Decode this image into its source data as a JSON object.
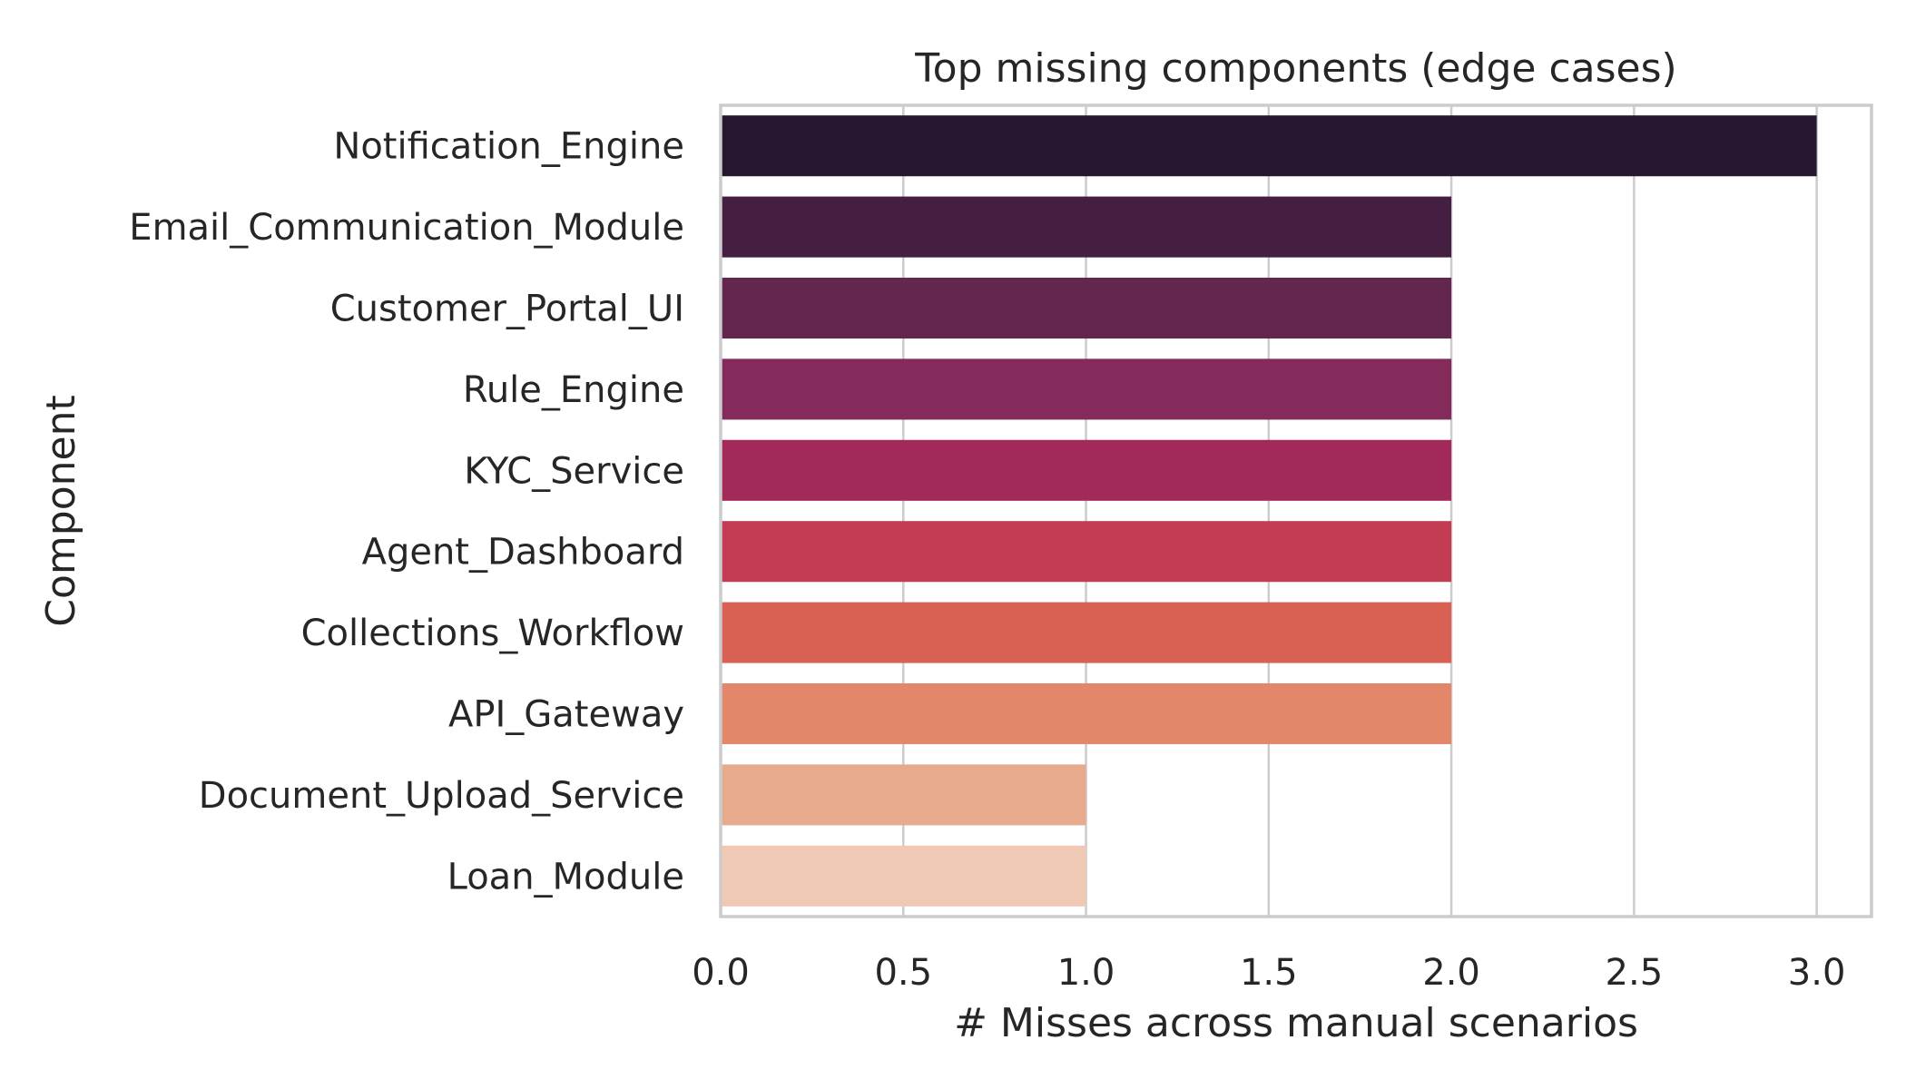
{
  "chart_data": {
    "type": "bar",
    "orientation": "horizontal",
    "title": "Top missing components (edge cases)",
    "xlabel": "# Misses across manual scenarios",
    "ylabel": "Component",
    "categories": [
      "Notification_Engine",
      "Email_Communication_Module",
      "Customer_Portal_UI",
      "Rule_Engine",
      "KYC_Service",
      "Agent_Dashboard",
      "Collections_Workflow",
      "API_Gateway",
      "Document_Upload_Service",
      "Loan_Module"
    ],
    "values": [
      3,
      2,
      2,
      2,
      2,
      2,
      2,
      2,
      1,
      1
    ],
    "colors": [
      "#251730",
      "#441f42",
      "#62264f",
      "#842b5b",
      "#a3295a",
      "#c33c54",
      "#d96154",
      "#e2876a",
      "#e8aa8c",
      "#efc9b4"
    ],
    "xlim": [
      0,
      3.15
    ],
    "xticks": [
      "0.0",
      "0.5",
      "1.0",
      "1.5",
      "2.0",
      "2.5",
      "3.0"
    ],
    "grid": true,
    "legend": "none"
  }
}
